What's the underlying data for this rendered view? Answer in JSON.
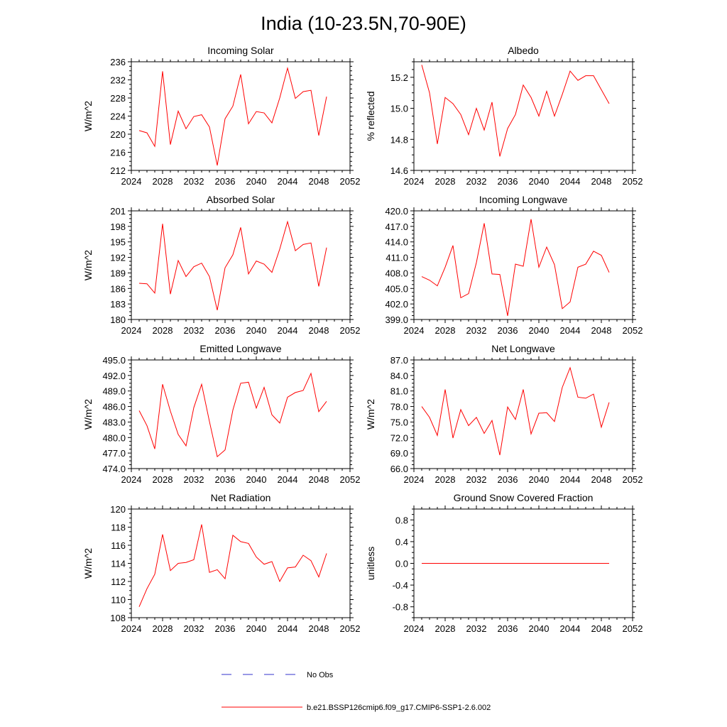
{
  "figure": {
    "title": "India (10-23.5N,70-90E)"
  },
  "colors": {
    "model_line": "#ff0000",
    "obs_line": "#3333cc",
    "axis": "#000000"
  },
  "legend": {
    "obs_label": "No Obs",
    "model_label": "b.e21.BSSP126cmip6.f09_g17.CMIP6-SSP1-2.6.002"
  },
  "chart_data": [
    {
      "type": "line",
      "title": "Incoming Solar",
      "xlabel": "",
      "ylabel": "W/m^2",
      "xlim": [
        2024,
        2052
      ],
      "xticks": [
        2024,
        2028,
        2032,
        2036,
        2040,
        2044,
        2048,
        2052
      ],
      "ylim": [
        212,
        236
      ],
      "yticks": [
        "212",
        "216",
        "220",
        "224",
        "228",
        "232",
        "236"
      ],
      "x": [
        2025,
        2026,
        2027,
        2028,
        2029,
        2030,
        2031,
        2032,
        2033,
        2034,
        2035,
        2036,
        2037,
        2038,
        2039,
        2040,
        2041,
        2042,
        2043,
        2044,
        2045,
        2046,
        2047,
        2048,
        2049
      ],
      "series": [
        {
          "name": "b.e21.BSSP126cmip6.f09_g17.CMIP6-SSP1-2.6.002",
          "values": [
            220.8,
            220.3,
            217.3,
            233.9,
            217.7,
            225.1,
            221.2,
            223.9,
            224.3,
            221.6,
            213.1,
            223.4,
            226.2,
            233.2,
            222.3,
            225.0,
            224.7,
            222.5,
            228.0,
            234.6,
            227.9,
            229.4,
            229.7,
            219.7,
            228.3
          ]
        }
      ]
    },
    {
      "type": "line",
      "title": "Albedo",
      "xlabel": "",
      "ylabel": "% reflected",
      "xlim": [
        2024,
        2052
      ],
      "xticks": [
        2024,
        2028,
        2032,
        2036,
        2040,
        2044,
        2048,
        2052
      ],
      "ylim": [
        14.6,
        15.3
      ],
      "yticks": [
        "14.6",
        "14.8",
        "15.0",
        "15.2"
      ],
      "x": [
        2025,
        2026,
        2027,
        2028,
        2029,
        2030,
        2031,
        2032,
        2033,
        2034,
        2035,
        2036,
        2037,
        2038,
        2039,
        2040,
        2041,
        2042,
        2043,
        2044,
        2045,
        2046,
        2047,
        2048,
        2049
      ],
      "series": [
        {
          "name": "b.e21.BSSP126cmip6.f09_g17.CMIP6-SSP1-2.6.002",
          "values": [
            15.28,
            15.1,
            14.77,
            15.07,
            15.03,
            14.96,
            14.83,
            15.0,
            14.86,
            15.04,
            14.69,
            14.87,
            14.96,
            15.15,
            15.07,
            14.95,
            15.11,
            14.95,
            15.09,
            15.24,
            15.18,
            15.21,
            15.21,
            15.12,
            15.03
          ]
        }
      ]
    },
    {
      "type": "line",
      "title": "Absorbed Solar",
      "xlabel": "",
      "ylabel": "W/m^2",
      "xlim": [
        2024,
        2052
      ],
      "xticks": [
        2024,
        2028,
        2032,
        2036,
        2040,
        2044,
        2048,
        2052
      ],
      "ylim": [
        180,
        201
      ],
      "yticks": [
        "180",
        "183",
        "186",
        "189",
        "192",
        "195",
        "198",
        "201"
      ],
      "x": [
        2025,
        2026,
        2027,
        2028,
        2029,
        2030,
        2031,
        2032,
        2033,
        2034,
        2035,
        2036,
        2037,
        2038,
        2039,
        2040,
        2041,
        2042,
        2043,
        2044,
        2045,
        2046,
        2047,
        2048,
        2049
      ],
      "series": [
        {
          "name": "b.e21.BSSP126cmip6.f09_g17.CMIP6-SSP1-2.6.002",
          "values": [
            187.0,
            186.9,
            185.1,
            198.5,
            184.9,
            191.4,
            188.3,
            190.2,
            190.9,
            188.3,
            181.8,
            190.0,
            192.5,
            197.8,
            188.8,
            191.3,
            190.7,
            189.1,
            193.6,
            198.9,
            193.3,
            194.5,
            194.8,
            186.4,
            193.9
          ]
        }
      ]
    },
    {
      "type": "line",
      "title": "Incoming Longwave",
      "xlabel": "",
      "ylabel": "",
      "xlim": [
        2024,
        2052
      ],
      "xticks": [
        2024,
        2028,
        2032,
        2036,
        2040,
        2044,
        2048,
        2052
      ],
      "ylim": [
        399.0,
        420.0
      ],
      "yticks": [
        "399.0",
        "402.0",
        "405.0",
        "408.0",
        "411.0",
        "414.0",
        "417.0",
        "420.0"
      ],
      "x": [
        2025,
        2026,
        2027,
        2028,
        2029,
        2030,
        2031,
        2032,
        2033,
        2034,
        2035,
        2036,
        2037,
        2038,
        2039,
        2040,
        2041,
        2042,
        2043,
        2044,
        2045,
        2046,
        2047,
        2048,
        2049
      ],
      "series": [
        {
          "name": "b.e21.BSSP126cmip6.f09_g17.CMIP6-SSP1-2.6.002",
          "values": [
            407.3,
            406.6,
            405.5,
            409.1,
            413.3,
            403.2,
            404.0,
            410.0,
            417.6,
            407.8,
            407.7,
            399.7,
            409.7,
            409.3,
            418.4,
            409.1,
            413.0,
            409.6,
            401.1,
            402.4,
            409.1,
            409.7,
            412.2,
            411.4,
            408.1
          ]
        }
      ]
    },
    {
      "type": "line",
      "title": "Emitted Longwave",
      "xlabel": "",
      "ylabel": "W/m^2",
      "xlim": [
        2024,
        2052
      ],
      "xticks": [
        2024,
        2028,
        2032,
        2036,
        2040,
        2044,
        2048,
        2052
      ],
      "ylim": [
        474.0,
        495.0
      ],
      "yticks": [
        "474.0",
        "477.0",
        "480.0",
        "483.0",
        "486.0",
        "489.0",
        "492.0",
        "495.0"
      ],
      "x": [
        2025,
        2026,
        2027,
        2028,
        2029,
        2030,
        2031,
        2032,
        2033,
        2034,
        2035,
        2036,
        2037,
        2038,
        2039,
        2040,
        2041,
        2042,
        2043,
        2044,
        2045,
        2046,
        2047,
        2048,
        2049
      ],
      "series": [
        {
          "name": "b.e21.BSSP126cmip6.f09_g17.CMIP6-SSP1-2.6.002",
          "values": [
            485.2,
            482.3,
            477.8,
            490.3,
            485.1,
            480.6,
            478.4,
            485.8,
            490.3,
            483.1,
            476.3,
            477.6,
            485.3,
            490.5,
            490.7,
            485.7,
            489.7,
            484.4,
            482.8,
            487.8,
            488.7,
            489.1,
            492.4,
            485.0,
            487.0
          ]
        }
      ]
    },
    {
      "type": "line",
      "title": "Net Longwave",
      "xlabel": "",
      "ylabel": "W/m^2",
      "xlim": [
        2024,
        2052
      ],
      "xticks": [
        2024,
        2028,
        2032,
        2036,
        2040,
        2044,
        2048,
        2052
      ],
      "ylim": [
        66.0,
        87.0
      ],
      "yticks": [
        "66.0",
        "69.0",
        "72.0",
        "75.0",
        "78.0",
        "81.0",
        "84.0",
        "87.0"
      ],
      "x": [
        2025,
        2026,
        2027,
        2028,
        2029,
        2030,
        2031,
        2032,
        2033,
        2034,
        2035,
        2036,
        2037,
        2038,
        2039,
        2040,
        2041,
        2042,
        2043,
        2044,
        2045,
        2046,
        2047,
        2048,
        2049
      ],
      "series": [
        {
          "name": "b.e21.BSSP126cmip6.f09_g17.CMIP6-SSP1-2.6.002",
          "values": [
            78.0,
            75.9,
            72.4,
            81.3,
            71.9,
            77.4,
            74.3,
            75.9,
            72.8,
            75.3,
            68.6,
            77.9,
            75.5,
            81.3,
            72.7,
            76.7,
            76.8,
            75.1,
            81.7,
            85.5,
            79.8,
            79.6,
            80.4,
            74.0,
            78.8
          ]
        }
      ]
    },
    {
      "type": "line",
      "title": "Net Radiation",
      "xlabel": "",
      "ylabel": "W/m^2",
      "xlim": [
        2024,
        2052
      ],
      "xticks": [
        2024,
        2028,
        2032,
        2036,
        2040,
        2044,
        2048,
        2052
      ],
      "ylim": [
        108,
        120
      ],
      "yticks": [
        "108",
        "110",
        "112",
        "114",
        "116",
        "118",
        "120"
      ],
      "x": [
        2025,
        2026,
        2027,
        2028,
        2029,
        2030,
        2031,
        2032,
        2033,
        2034,
        2035,
        2036,
        2037,
        2038,
        2039,
        2040,
        2041,
        2042,
        2043,
        2044,
        2045,
        2046,
        2047,
        2048,
        2049
      ],
      "series": [
        {
          "name": "b.e21.BSSP126cmip6.f09_g17.CMIP6-SSP1-2.6.002",
          "values": [
            109.2,
            111.2,
            112.8,
            117.2,
            113.2,
            114.0,
            114.1,
            114.4,
            118.3,
            113.0,
            113.3,
            112.3,
            117.1,
            116.4,
            116.2,
            114.7,
            113.9,
            114.2,
            112.0,
            113.5,
            113.6,
            114.9,
            114.3,
            112.5,
            115.1
          ]
        }
      ]
    },
    {
      "type": "line",
      "title": "Ground Snow Covered Fraction",
      "xlabel": "",
      "ylabel": "unitless",
      "xlim": [
        2024,
        2052
      ],
      "xticks": [
        2024,
        2028,
        2032,
        2036,
        2040,
        2044,
        2048,
        2052
      ],
      "ylim": [
        -1.0,
        1.0
      ],
      "yticks": [
        "-0.8",
        "-0.4",
        "0.0",
        "0.4",
        "0.8"
      ],
      "x": [
        2025,
        2026,
        2027,
        2028,
        2029,
        2030,
        2031,
        2032,
        2033,
        2034,
        2035,
        2036,
        2037,
        2038,
        2039,
        2040,
        2041,
        2042,
        2043,
        2044,
        2045,
        2046,
        2047,
        2048,
        2049
      ],
      "series": [
        {
          "name": "b.e21.BSSP126cmip6.f09_g17.CMIP6-SSP1-2.6.002",
          "values": [
            0,
            0,
            0,
            0,
            0,
            0,
            0,
            0,
            0,
            0,
            0,
            0,
            0,
            0,
            0,
            0,
            0,
            0,
            0,
            0,
            0,
            0,
            0,
            0,
            0
          ]
        }
      ]
    }
  ]
}
